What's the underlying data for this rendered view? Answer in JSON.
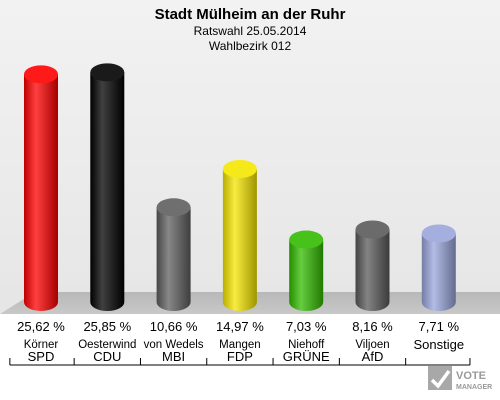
{
  "chart_data": {
    "type": "bar",
    "title": "Stadt Mülheim an der Ruhr",
    "subtitle_lines": [
      "Ratswahl 25.05.2014",
      "Wahlbezirk 012"
    ],
    "categories": [
      "SPD",
      "CDU",
      "MBI",
      "FDP",
      "GRÜNE",
      "AfD",
      "Sonstige"
    ],
    "candidates": [
      "Körner",
      "Oesterwind",
      "von Wedels",
      "Mangen",
      "Niehoff",
      "Viljoen",
      ""
    ],
    "values": [
      25.62,
      25.85,
      10.66,
      14.97,
      7.03,
      8.16,
      7.71
    ],
    "value_labels": [
      "25,62 %",
      "25,85 %",
      "10,66 %",
      "14,97 %",
      "7,03 %",
      "8,16 %",
      "7,71 %"
    ],
    "colors": [
      "#ff0000",
      "#000000",
      "#5f5f5f",
      "#f5e600",
      "#33bb00",
      "#5a5a5a",
      "#9aa6dc"
    ],
    "ylim": [
      0,
      26
    ],
    "grid": false,
    "legend": "none"
  },
  "logo": {
    "line1": "VOTE",
    "line2": "MANAGER"
  }
}
